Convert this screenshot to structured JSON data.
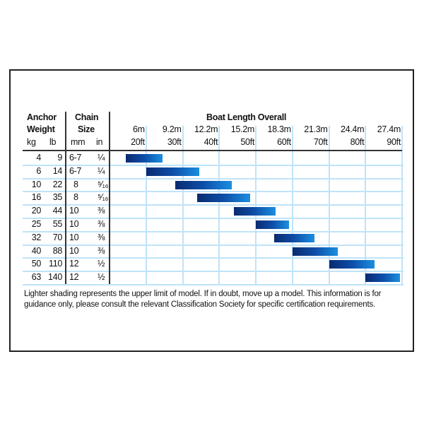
{
  "chart_data": {
    "type": "bar",
    "title": "Boat Length Overall",
    "headers": {
      "anchor": "Anchor",
      "weight": "Weight",
      "chain": "Chain",
      "size": "Size",
      "kg": "kg",
      "lb": "lb",
      "mm": "mm",
      "in": "in"
    },
    "x_ticks_m": [
      "6m",
      "9.2m",
      "12.2m",
      "15.2m",
      "18.3m",
      "21.3m",
      "24.4m",
      "27.4m"
    ],
    "x_ticks_ft": [
      "20ft",
      "30ft",
      "40ft",
      "50ft",
      "60ft",
      "70ft",
      "80ft",
      "90ft"
    ],
    "x_unit": "ft",
    "xlim": [
      10,
      90
    ],
    "grid": true,
    "rows": [
      {
        "kg": "4",
        "lb": "9",
        "mm": "6-7",
        "in": "¼",
        "range_ft": [
          14.5,
          24.5
        ]
      },
      {
        "kg": "6",
        "lb": "14",
        "mm": "6-7",
        "in": "¼",
        "range_ft": [
          20,
          34.5
        ]
      },
      {
        "kg": "10",
        "lb": "22",
        "mm": "8",
        "in": "⁵⁄₁₆",
        "range_ft": [
          28,
          43.5
        ]
      },
      {
        "kg": "16",
        "lb": "35",
        "mm": "8",
        "in": "⁵⁄₁₆",
        "range_ft": [
          34,
          48.5
        ]
      },
      {
        "kg": "20",
        "lb": "44",
        "mm": "10",
        "in": "⅜",
        "range_ft": [
          44,
          55.5
        ]
      },
      {
        "kg": "25",
        "lb": "55",
        "mm": "10",
        "in": "⅜",
        "range_ft": [
          50,
          59
        ]
      },
      {
        "kg": "32",
        "lb": "70",
        "mm": "10",
        "in": "⅜",
        "range_ft": [
          55,
          66
        ]
      },
      {
        "kg": "40",
        "lb": "88",
        "mm": "10",
        "in": "⅜",
        "range_ft": [
          60,
          72.5
        ]
      },
      {
        "kg": "50",
        "lb": "110",
        "mm": "12",
        "in": "½",
        "range_ft": [
          70,
          82.5
        ]
      },
      {
        "kg": "63",
        "lb": "140",
        "mm": "12",
        "in": "½",
        "range_ft": [
          80,
          89.5
        ]
      }
    ],
    "colors": {
      "bar_dark": "#0a2a70",
      "bar_light": "#1a8fe0",
      "grid": "#bfe3f8"
    }
  },
  "note": "Lighter shading represents the upper limit of model. If in doubt, move up a model. This information is for guidance only, please consult the relevant Classification Society for specific certification requirements."
}
